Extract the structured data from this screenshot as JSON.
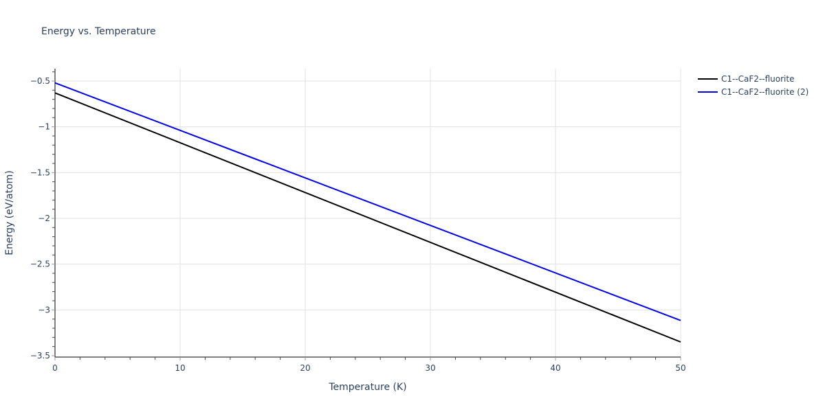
{
  "chart_data": {
    "type": "line",
    "title": "Energy vs. Temperature",
    "xlabel": "Temperature (K)",
    "ylabel": "Energy (eV/atom)",
    "xlim": [
      0,
      50
    ],
    "ylim": [
      -3.5,
      -0.36
    ],
    "xticks": [
      0,
      10,
      20,
      30,
      40,
      50
    ],
    "yticks": [
      -0.5,
      -1,
      -1.5,
      -2,
      -2.5,
      -3,
      -3.5
    ],
    "ytick_labels": [
      "−0.5",
      "−1",
      "−1.5",
      "−2",
      "−2.5",
      "−3",
      "−3.5"
    ],
    "grid": true,
    "legend_position": "top-right-outside",
    "series": [
      {
        "name": "C1--CaF2--fluorite",
        "color": "#000000",
        "x": [
          0,
          50
        ],
        "y": [
          -0.63,
          -3.35
        ]
      },
      {
        "name": "C1--CaF2--fluorite (2)",
        "color": "#0000ee",
        "x": [
          0,
          50
        ],
        "y": [
          -0.52,
          -3.115
        ]
      }
    ]
  }
}
